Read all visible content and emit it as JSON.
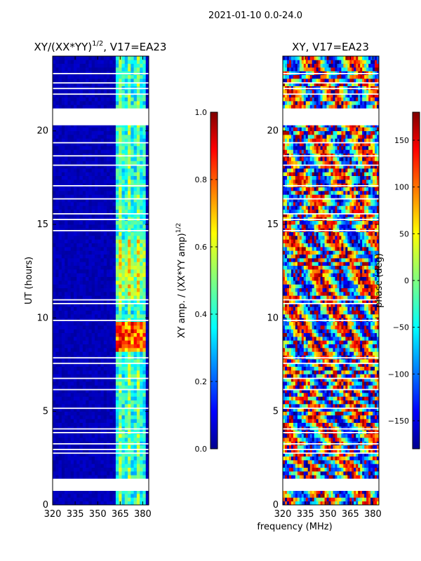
{
  "figure": {
    "suptitle": "2021-01-10 0.0-24.0",
    "common_xlabel": "frequency (MHz)"
  },
  "chart_data": [
    {
      "type": "heatmap",
      "title": "XY/(XX*YY)",
      "title_sup": "1/2",
      "title_suffix": ", V17=EA23",
      "ylabel": "UT (hours)",
      "xlim": [
        320,
        384
      ],
      "ylim": [
        0,
        24
      ],
      "xticks": [
        320,
        335,
        350,
        365,
        380
      ],
      "yticks": [
        0,
        5,
        10,
        15,
        20
      ],
      "colorbar": {
        "label": "XY amp. / (XX*YY amp)",
        "label_sup": "1/2",
        "range": [
          0.0,
          1.0
        ],
        "ticks": [
          "0.0",
          "0.2",
          "0.4",
          "0.6",
          "0.8",
          "1.0"
        ]
      },
      "flagged_hours": [
        [
          0.75,
          1.4
        ],
        [
          20.3,
          21.2
        ]
      ],
      "signal_band_mhz": [
        363,
        382
      ],
      "peak_band_hours": [
        8.3,
        9.7
      ]
    },
    {
      "type": "heatmap",
      "title": "XY, V17=EA23",
      "ylabel": "",
      "xlim": [
        320,
        384
      ],
      "ylim": [
        0,
        24
      ],
      "xticks": [
        320,
        335,
        350,
        365,
        380
      ],
      "yticks": [
        0,
        5,
        10,
        15,
        20
      ],
      "colorbar": {
        "label": "phase (deg)",
        "range": [
          -180,
          180
        ],
        "ticks": [
          "−150",
          "−100",
          "−50",
          "0",
          "50",
          "100",
          "150"
        ]
      },
      "flagged_hours": [
        [
          0.75,
          1.4
        ],
        [
          20.3,
          21.2
        ]
      ]
    }
  ],
  "colors": {
    "jet_dark_blue": "#00008f",
    "jet_red": "#ff0000",
    "flag": "#ffffff",
    "axis": "#000000"
  }
}
